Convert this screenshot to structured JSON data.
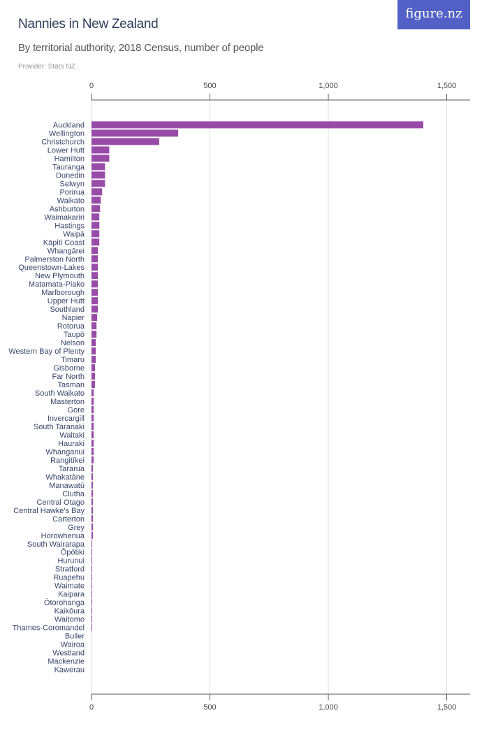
{
  "header": {
    "title": "Nannies in New Zealand",
    "subtitle": "By territorial authority, 2018 Census, number of people",
    "provider": "Provider: Stats NZ",
    "logo": "figure.nz"
  },
  "chart_data": {
    "type": "bar",
    "orientation": "horizontal",
    "bar_color": "#984ca8",
    "xlim": [
      0,
      1600
    ],
    "ticks": [
      0,
      500,
      1000,
      1500
    ],
    "tick_labels": [
      "0",
      "500",
      "1,000",
      "1,500"
    ],
    "grid": true,
    "categories": [
      "Auckland",
      "Wellington",
      "Christchurch",
      "Lower Hutt",
      "Hamilton",
      "Tauranga",
      "Dunedin",
      "Selwyn",
      "Porirua",
      "Waikato",
      "Ashburton",
      "Waimakariri",
      "Hastings",
      "Waipā",
      "Kāpiti Coast",
      "Whangārei",
      "Palmerston North",
      "Queenstown-Lakes",
      "New Plymouth",
      "Matamata-Piako",
      "Marlborough",
      "Upper Hutt",
      "Southland",
      "Napier",
      "Rotorua",
      "Taupō",
      "Nelson",
      "Western Bay of Plenty",
      "Timaru",
      "Gisborne",
      "Far North",
      "Tasman",
      "South Waikato",
      "Masterton",
      "Gore",
      "Invercargill",
      "South Taranaki",
      "Waitaki",
      "Hauraki",
      "Whanganui",
      "Rangitīkei",
      "Tararua",
      "Whakatāne",
      "Manawatū",
      "Clutha",
      "Central Otago",
      "Central Hawke's Bay",
      "Carterton",
      "Grey",
      "Horowhenua",
      "South Wairarapa",
      "Ōpōtiki",
      "Hurunui",
      "Stratford",
      "Ruapehu",
      "Waimate",
      "Kaipara",
      "Ōtorohanga",
      "Kaikōura",
      "Waitomo",
      "Thames-Coromandel",
      "Buller",
      "Wairoa",
      "Westland",
      "Mackenzie",
      "Kawerau"
    ],
    "values": [
      1401,
      366,
      286,
      75,
      75,
      57,
      57,
      57,
      45,
      39,
      36,
      33,
      33,
      33,
      33,
      27,
      27,
      27,
      27,
      27,
      27,
      27,
      27,
      24,
      21,
      21,
      18,
      18,
      18,
      15,
      15,
      15,
      9,
      9,
      9,
      9,
      9,
      9,
      9,
      9,
      9,
      6,
      6,
      6,
      6,
      6,
      6,
      6,
      6,
      6,
      3,
      3,
      3,
      3,
      3,
      3,
      3,
      3,
      3,
      3,
      3,
      0,
      0,
      0,
      0,
      0
    ]
  }
}
